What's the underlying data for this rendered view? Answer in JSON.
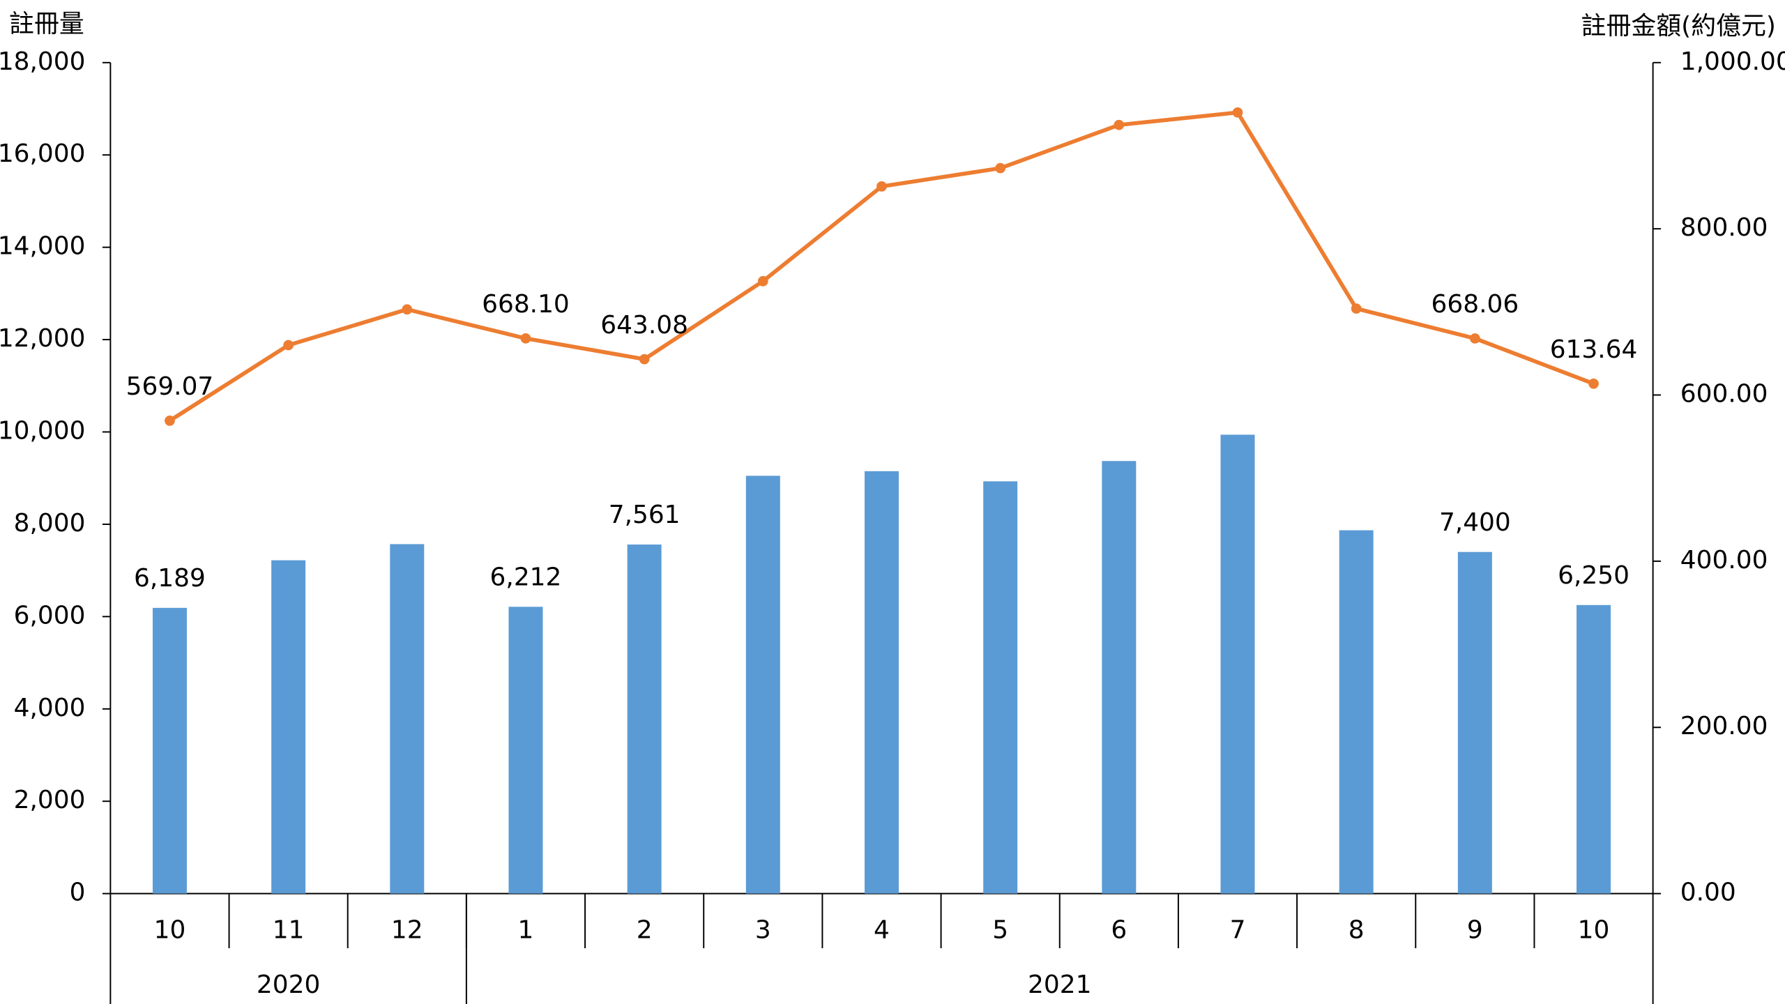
{
  "chart_data": {
    "type": "combo",
    "y_label": "註冊量",
    "y2_label": "註冊金額(約億元)",
    "categories": [
      "10",
      "11",
      "12",
      "1",
      "2",
      "3",
      "4",
      "5",
      "6",
      "7",
      "8",
      "9",
      "10"
    ],
    "groups": [
      {
        "label": "2020",
        "size": 3
      },
      {
        "label": "2021",
        "size": 10
      }
    ],
    "series": [
      {
        "type": "bar",
        "color": "#5b9bd5",
        "values": [
          6189,
          7220,
          7570,
          6212,
          7561,
          9050,
          9150,
          8930,
          9370,
          9940,
          7870,
          7400,
          6250
        ],
        "value_labels": [
          "6,189",
          null,
          null,
          "6,212",
          "7,561",
          null,
          null,
          null,
          null,
          null,
          null,
          "7,400",
          "6,250"
        ]
      },
      {
        "type": "line",
        "axis": "y2",
        "color": "#ed7d31",
        "values": [
          569.07,
          660,
          703,
          668.1,
          643.08,
          737,
          851,
          873,
          925,
          940,
          704,
          668.06,
          613.64
        ],
        "value_labels": [
          "569.07",
          null,
          null,
          "668.10",
          "643.08",
          null,
          null,
          null,
          null,
          null,
          null,
          "668.06",
          "613.64"
        ]
      }
    ],
    "ylim": [
      0,
      18000
    ],
    "yticks": [
      {
        "value": 0,
        "label": "0"
      },
      {
        "value": 2000,
        "label": "2,000"
      },
      {
        "value": 4000,
        "label": "4,000"
      },
      {
        "value": 6000,
        "label": "6,000"
      },
      {
        "value": 8000,
        "label": "8,000"
      },
      {
        "value": 10000,
        "label": "10,000"
      },
      {
        "value": 12000,
        "label": "12,000"
      },
      {
        "value": 14000,
        "label": "14,000"
      },
      {
        "value": 16000,
        "label": "16,000"
      },
      {
        "value": 18000,
        "label": "18,000"
      }
    ],
    "y2lim": [
      0,
      1000
    ],
    "y2ticks": [
      {
        "value": 0,
        "label": "0.00"
      },
      {
        "value": 200,
        "label": "200.00"
      },
      {
        "value": 400,
        "label": "400.00"
      },
      {
        "value": 600,
        "label": "600.00"
      },
      {
        "value": 800,
        "label": "800.00"
      },
      {
        "value": 1000,
        "label": "1,000.00"
      }
    ]
  }
}
